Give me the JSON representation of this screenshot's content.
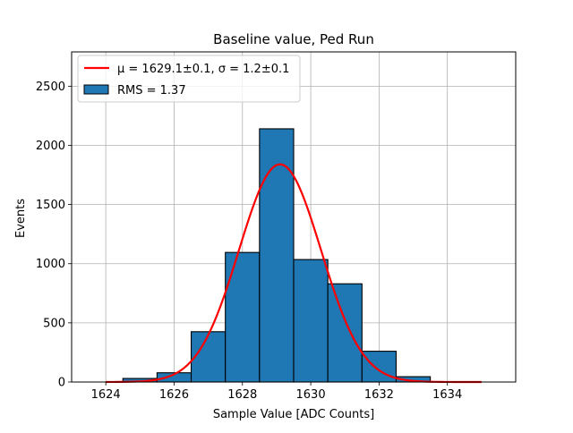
{
  "chart_data": {
    "type": "bar",
    "title": "Baseline value, Ped Run",
    "xlabel": "Sample Value [ADC Counts]",
    "ylabel": "Events",
    "xlim": [
      1623.0,
      1636.0
    ],
    "ylim": [
      0,
      2790
    ],
    "xticks": [
      1624,
      1626,
      1628,
      1630,
      1632,
      1634
    ],
    "yticks": [
      0,
      500,
      1000,
      1500,
      2000,
      2500
    ],
    "grid": true,
    "legend_placement": "top-left",
    "histogram": {
      "label": "RMS = 1.37",
      "color": "#1f77b4",
      "edgecolor": "#000000",
      "bins": [
        {
          "left": 1624.5,
          "right": 1625.5,
          "count": 30
        },
        {
          "left": 1625.5,
          "right": 1626.5,
          "count": 78
        },
        {
          "left": 1626.5,
          "right": 1627.5,
          "count": 425
        },
        {
          "left": 1627.5,
          "right": 1628.5,
          "count": 1095
        },
        {
          "left": 1628.5,
          "right": 1629.5,
          "count": 2140
        },
        {
          "left": 1629.5,
          "right": 1630.5,
          "count": 1035
        },
        {
          "left": 1630.5,
          "right": 1631.5,
          "count": 830
        },
        {
          "left": 1631.5,
          "right": 1632.5,
          "count": 260
        },
        {
          "left": 1632.5,
          "right": 1633.5,
          "count": 45
        },
        {
          "left": 1633.5,
          "right": 1634.5,
          "count": 3
        }
      ]
    },
    "fit": {
      "label": "μ = 1629.1±0.1, σ = 1.2±0.1",
      "color": "#ff0000",
      "function": "gaussian",
      "mu": 1629.1,
      "sigma": 1.2,
      "amplitude": 1840,
      "x_range": [
        1624.0,
        1635.0
      ]
    }
  }
}
